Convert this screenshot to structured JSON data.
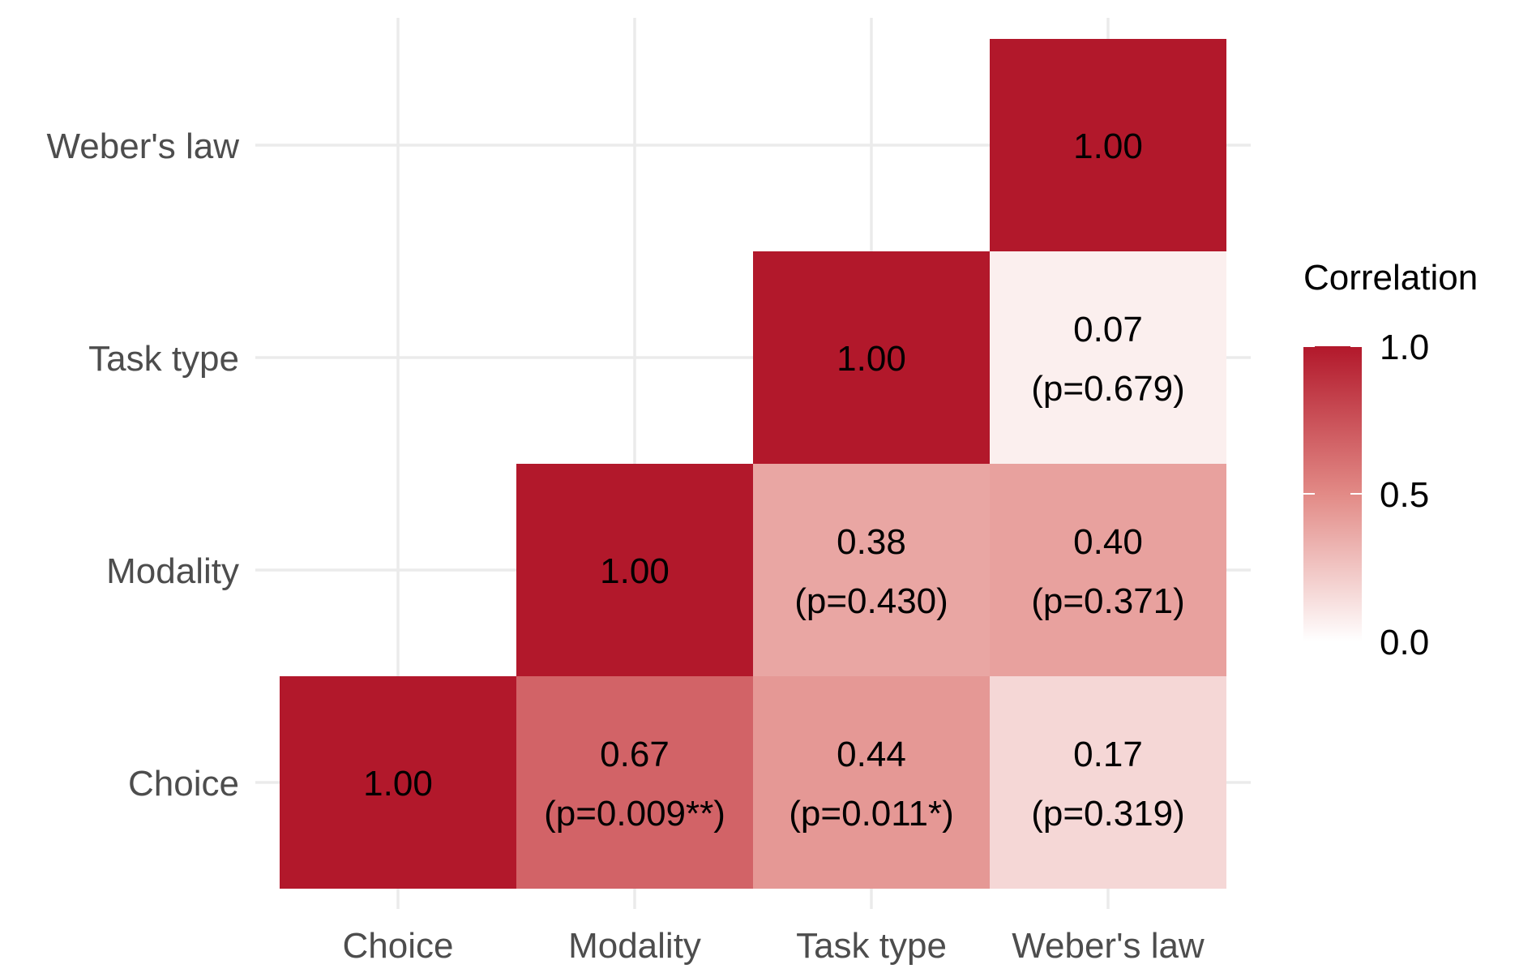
{
  "chart_data": {
    "type": "heatmap",
    "title": "",
    "xlabel": "",
    "ylabel": "",
    "x_categories": [
      "Choice",
      "Modality",
      "Task type",
      "Weber's law"
    ],
    "y_categories": [
      "Choice",
      "Modality",
      "Task type",
      "Weber's law"
    ],
    "cells": [
      {
        "x": "Choice",
        "y": "Choice",
        "value": 1.0,
        "label": "1.00",
        "p_label": ""
      },
      {
        "x": "Modality",
        "y": "Choice",
        "value": 0.67,
        "label": "0.67",
        "p_label": "(p=0.009**)"
      },
      {
        "x": "Task type",
        "y": "Choice",
        "value": 0.44,
        "label": "0.44",
        "p_label": "(p=0.011*)"
      },
      {
        "x": "Weber's law",
        "y": "Choice",
        "value": 0.17,
        "label": "0.17",
        "p_label": "(p=0.319)"
      },
      {
        "x": "Modality",
        "y": "Modality",
        "value": 1.0,
        "label": "1.00",
        "p_label": ""
      },
      {
        "x": "Task type",
        "y": "Modality",
        "value": 0.38,
        "label": "0.38",
        "p_label": "(p=0.430)"
      },
      {
        "x": "Weber's law",
        "y": "Modality",
        "value": 0.4,
        "label": "0.40",
        "p_label": "(p=0.371)"
      },
      {
        "x": "Task type",
        "y": "Task type",
        "value": 1.0,
        "label": "1.00",
        "p_label": ""
      },
      {
        "x": "Weber's law",
        "y": "Task type",
        "value": 0.07,
        "label": "0.07",
        "p_label": "(p=0.679)"
      },
      {
        "x": "Weber's law",
        "y": "Weber's law",
        "value": 1.0,
        "label": "1.00",
        "p_label": ""
      }
    ],
    "legend": {
      "title": "Correlation",
      "ticks": [
        {
          "value": 1.0,
          "label": "1.0"
        },
        {
          "value": 0.5,
          "label": "0.5"
        },
        {
          "value": 0.0,
          "label": "0.0"
        }
      ],
      "range": [
        0,
        1
      ],
      "placement": "right"
    },
    "colors": {
      "low": "#ffffff",
      "mid": "#e28a86",
      "high": "#b2182b",
      "grid": "#ebebeb",
      "tick_text": "#4d4d4d"
    },
    "grid": true
  }
}
